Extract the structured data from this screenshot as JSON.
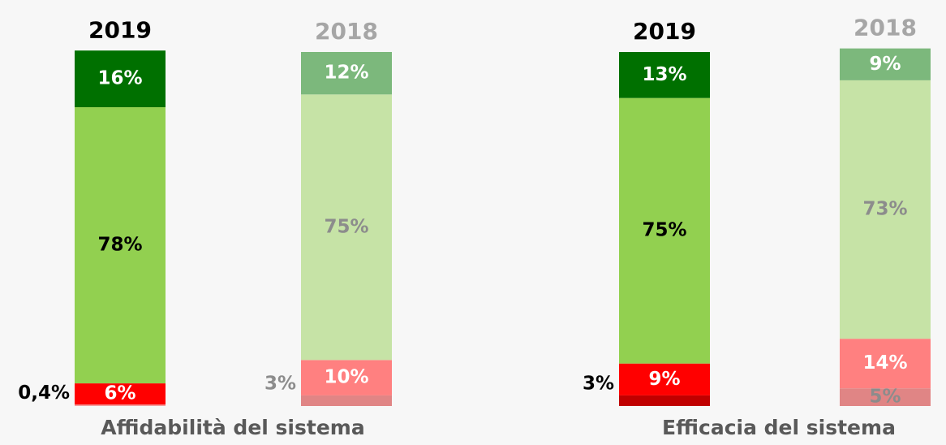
{
  "chart_data": [
    {
      "type": "bar",
      "stacked": true,
      "title": "Affidabilità del sistema",
      "categories": [
        "2019",
        "2018"
      ],
      "category_colors": [
        "#000000",
        "#a6a6a6"
      ],
      "series": [
        {
          "values": [
            0.4,
            3
          ],
          "value_labels": [
            "0,4%",
            "3%"
          ],
          "colors": [
            "#f4a0a0",
            "#e08585"
          ],
          "label_colors": [
            "#000000",
            "#8c8c8c"
          ]
        },
        {
          "values": [
            6,
            10
          ],
          "value_labels": [
            "6%",
            "10%"
          ],
          "colors": [
            "#ff0000",
            "#ff8080"
          ],
          "label_colors": [
            "#ffffff",
            "#ffffff"
          ]
        },
        {
          "values": [
            78,
            75
          ],
          "value_labels": [
            "78%",
            "75%"
          ],
          "colors": [
            "#92d050",
            "#c6e3a6"
          ],
          "label_colors": [
            "#000000",
            "#8c8c8c"
          ]
        },
        {
          "values": [
            16,
            12
          ],
          "value_labels": [
            "16%",
            "12%"
          ],
          "colors": [
            "#007000",
            "#7cb87c"
          ],
          "label_colors": [
            "#ffffff",
            "#ffffff"
          ]
        }
      ]
    },
    {
      "type": "bar",
      "stacked": true,
      "title": "Efficacia del sistema",
      "categories": [
        "2019",
        "2018"
      ],
      "category_colors": [
        "#000000",
        "#a6a6a6"
      ],
      "series": [
        {
          "values": [
            3,
            5
          ],
          "value_labels": [
            "3%",
            "5%"
          ],
          "colors": [
            "#c00000",
            "#e08585"
          ],
          "label_colors": [
            "#000000",
            "#8c8c8c"
          ]
        },
        {
          "values": [
            9,
            14
          ],
          "value_labels": [
            "9%",
            "14%"
          ],
          "colors": [
            "#ff0000",
            "#ff8080"
          ],
          "label_colors": [
            "#ffffff",
            "#ffffff"
          ]
        },
        {
          "values": [
            75,
            73
          ],
          "value_labels": [
            "75%",
            "73%"
          ],
          "colors": [
            "#92d050",
            "#c6e3a6"
          ],
          "label_colors": [
            "#000000",
            "#8c8c8c"
          ]
        },
        {
          "values": [
            13,
            9
          ],
          "value_labels": [
            "13%",
            "9%"
          ],
          "colors": [
            "#007000",
            "#7cb87c"
          ],
          "label_colors": [
            "#ffffff",
            "#ffffff"
          ]
        }
      ]
    }
  ]
}
